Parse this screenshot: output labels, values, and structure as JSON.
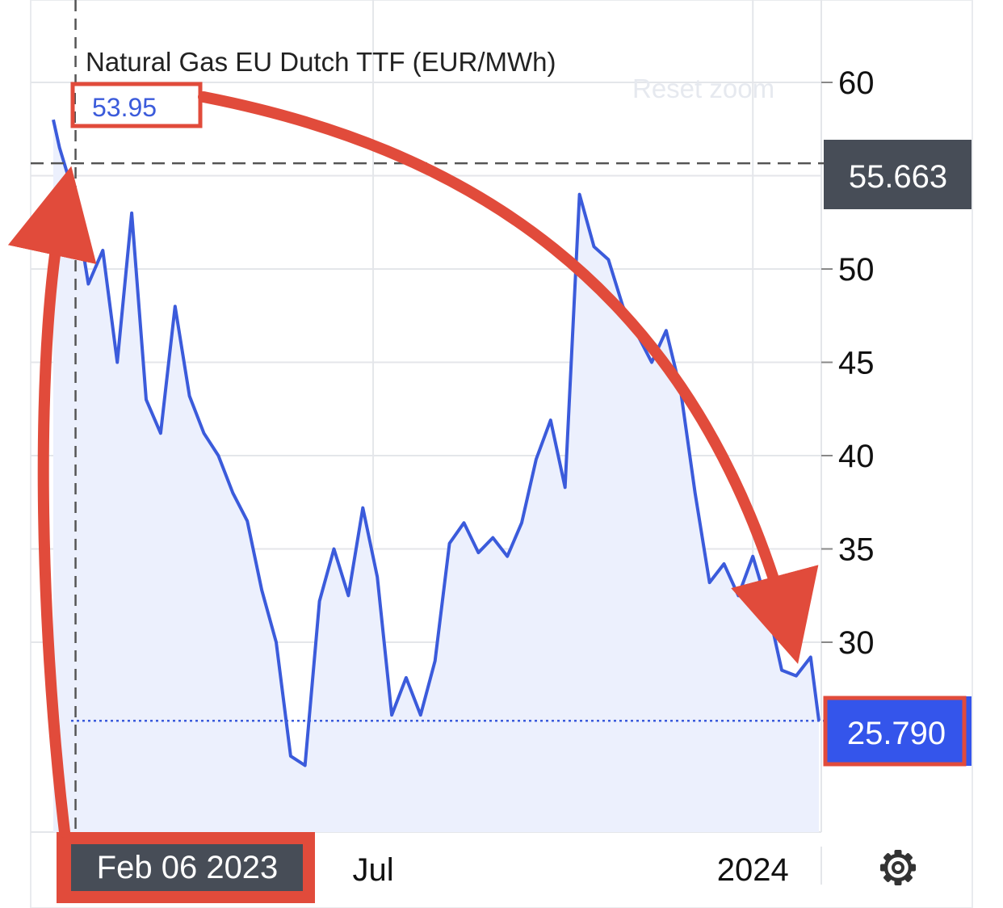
{
  "chart_data": {
    "type": "area",
    "title": "Natural Gas EU Dutch TTF (EUR/MWh)",
    "x_tick_labels": [
      "Jul",
      "2024"
    ],
    "y_ticks": [
      30,
      35,
      40,
      45,
      50,
      60
    ],
    "ylim": [
      22,
      62
    ],
    "grid": true,
    "series": [
      {
        "x": [
          "2023-01-27",
          "2023-01-30",
          "2023-02-06",
          "2023-02-13",
          "2023-02-20",
          "2023-02-27",
          "2023-03-06",
          "2023-03-13",
          "2023-03-20",
          "2023-03-27",
          "2023-04-03",
          "2023-04-10",
          "2023-04-17",
          "2023-04-24",
          "2023-05-01",
          "2023-05-08",
          "2023-05-15",
          "2023-05-22",
          "2023-05-29",
          "2023-06-05",
          "2023-06-12",
          "2023-06-19",
          "2023-06-26",
          "2023-07-03",
          "2023-07-10",
          "2023-07-17",
          "2023-07-24",
          "2023-07-31",
          "2023-08-07",
          "2023-08-14",
          "2023-08-21",
          "2023-08-28",
          "2023-09-04",
          "2023-09-11",
          "2023-09-18",
          "2023-09-25",
          "2023-10-02",
          "2023-10-09",
          "2023-10-16",
          "2023-10-23",
          "2023-10-30",
          "2023-11-06",
          "2023-11-13",
          "2023-11-20",
          "2023-11-27",
          "2023-12-04",
          "2023-12-11",
          "2023-12-18",
          "2023-12-25",
          "2024-01-01",
          "2024-01-08",
          "2024-01-15",
          "2024-01-22",
          "2024-01-29",
          "2024-02-02"
        ],
        "values": [
          58.0,
          56.5,
          53.95,
          49.2,
          51.0,
          45.0,
          53.0,
          43.0,
          41.2,
          48.0,
          43.2,
          41.2,
          40.0,
          38.0,
          36.5,
          32.8,
          30.0,
          23.9,
          23.4,
          32.2,
          35.0,
          32.5,
          37.2,
          33.5,
          26.1,
          28.1,
          26.1,
          29.0,
          35.3,
          36.4,
          34.8,
          35.6,
          34.6,
          36.4,
          39.8,
          41.9,
          38.3,
          54.0,
          51.2,
          50.5,
          48.0,
          46.5,
          45.0,
          46.7,
          43.5,
          38.0,
          33.2,
          34.2,
          32.5,
          34.6,
          32.0,
          28.5,
          28.2,
          29.2,
          25.79
        ]
      }
    ],
    "dashed_reference_value": 55.663,
    "dashed_reference_label": "55.663",
    "dotted_last_value": 25.79,
    "last_value_label": "25.790",
    "hover": {
      "date": "Feb 06 2023",
      "value": "53.95"
    }
  },
  "ui": {
    "reset_zoom_label": "Reset zoom",
    "settings_icon": "gear-icon"
  },
  "colors": {
    "line": "#3b5bdb",
    "fill": "#ecf0fd",
    "annotation_red": "#e14b3b",
    "dark_badge": "#474d57",
    "blue_badge": "#3455eb",
    "grid": "#e4e6ea"
  }
}
